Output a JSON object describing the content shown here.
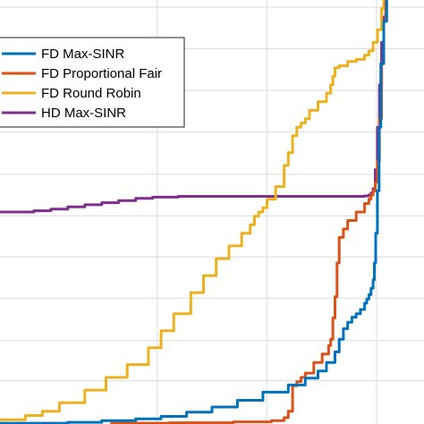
{
  "chart_data": {
    "type": "line",
    "title": "",
    "xlabel": "",
    "ylabel": "",
    "xlim": [
      0,
      1
    ],
    "ylim": [
      0,
      1
    ],
    "grid": true,
    "x_gridlines": [
      0.371,
      0.629,
      0.888
    ],
    "y_gridlines": [
      0.102,
      0.197,
      0.297,
      0.394,
      0.491,
      0.589,
      0.689,
      0.787,
      0.885,
      0.983
    ],
    "legend": {
      "placement": "top-left",
      "entries": [
        "FD Max-SINR",
        "FD Proportional Fair",
        "FD Round Robin",
        "HD Max-SINR"
      ]
    },
    "colors": {
      "fd_max_sinr": "#0072BD",
      "fd_proportional_fair": "#D95319",
      "fd_round_robin": "#EDB120",
      "hd_max_sinr": "#7E2F8E"
    },
    "series": [
      {
        "name": "FD Max-SINR",
        "color": "#0072BD",
        "x": [
          0.0,
          0.08,
          0.16,
          0.24,
          0.32,
          0.38,
          0.44,
          0.5,
          0.56,
          0.62,
          0.68,
          0.72,
          0.75,
          0.77,
          0.79,
          0.8,
          0.81,
          0.82,
          0.83,
          0.84,
          0.85,
          0.86,
          0.865,
          0.87,
          0.875,
          0.88,
          0.883,
          0.886,
          0.89,
          0.894,
          0.898,
          0.905,
          0.912
        ],
        "y": [
          0.002,
          0.002,
          0.004,
          0.008,
          0.012,
          0.018,
          0.028,
          0.04,
          0.056,
          0.075,
          0.092,
          0.108,
          0.125,
          0.145,
          0.17,
          0.2,
          0.225,
          0.24,
          0.252,
          0.26,
          0.27,
          0.285,
          0.295,
          0.305,
          0.32,
          0.34,
          0.38,
          0.45,
          0.55,
          0.7,
          0.85,
          0.95,
          1.0
        ]
      },
      {
        "name": "FD Proportional Fair",
        "color": "#D95319",
        "x": [
          0.26,
          0.4,
          0.55,
          0.64,
          0.67,
          0.68,
          0.69,
          0.7,
          0.71,
          0.72,
          0.74,
          0.76,
          0.775,
          0.78,
          0.785,
          0.79,
          0.795,
          0.8,
          0.81,
          0.82,
          0.84,
          0.86,
          0.87,
          0.875,
          0.88,
          0.885,
          0.89,
          0.895,
          0.9,
          0.905,
          0.91
        ],
        "y": [
          0.002,
          0.003,
          0.005,
          0.008,
          0.015,
          0.03,
          0.09,
          0.1,
          0.11,
          0.12,
          0.145,
          0.165,
          0.185,
          0.2,
          0.25,
          0.3,
          0.38,
          0.44,
          0.46,
          0.48,
          0.5,
          0.52,
          0.53,
          0.54,
          0.55,
          0.57,
          0.62,
          0.72,
          0.85,
          0.95,
          1.0
        ]
      },
      {
        "name": "FD Round Robin",
        "color": "#EDB120",
        "x": [
          0.0,
          0.06,
          0.1,
          0.14,
          0.2,
          0.25,
          0.3,
          0.35,
          0.38,
          0.41,
          0.45,
          0.48,
          0.51,
          0.54,
          0.57,
          0.59,
          0.6,
          0.61,
          0.62,
          0.63,
          0.65,
          0.67,
          0.68,
          0.69,
          0.7,
          0.71,
          0.72,
          0.73,
          0.75,
          0.77,
          0.78,
          0.785,
          0.79,
          0.8,
          0.82,
          0.84,
          0.86,
          0.87,
          0.88,
          0.89,
          0.9,
          0.905
        ],
        "y": [
          0.01,
          0.02,
          0.03,
          0.05,
          0.08,
          0.11,
          0.14,
          0.18,
          0.22,
          0.26,
          0.31,
          0.35,
          0.39,
          0.42,
          0.45,
          0.47,
          0.49,
          0.5,
          0.51,
          0.53,
          0.56,
          0.61,
          0.64,
          0.68,
          0.7,
          0.71,
          0.72,
          0.74,
          0.76,
          0.78,
          0.8,
          0.82,
          0.84,
          0.845,
          0.855,
          0.86,
          0.87,
          0.88,
          0.9,
          0.93,
          0.98,
          1.0
        ]
      },
      {
        "name": "HD Max-SINR",
        "color": "#7E2F8E",
        "x": [
          0.0,
          0.04,
          0.08,
          0.12,
          0.16,
          0.2,
          0.24,
          0.28,
          0.32,
          0.36,
          0.42,
          0.5,
          0.6,
          0.7,
          0.8,
          0.84,
          0.86,
          0.87,
          0.875,
          0.88,
          0.885,
          0.89,
          0.895,
          0.9,
          0.905,
          0.91
        ],
        "y": [
          0.5,
          0.5,
          0.503,
          0.507,
          0.512,
          0.517,
          0.522,
          0.527,
          0.532,
          0.535,
          0.537,
          0.537,
          0.537,
          0.537,
          0.537,
          0.537,
          0.538,
          0.54,
          0.545,
          0.555,
          0.6,
          0.7,
          0.8,
          0.9,
          0.96,
          1.0
        ]
      }
    ]
  }
}
